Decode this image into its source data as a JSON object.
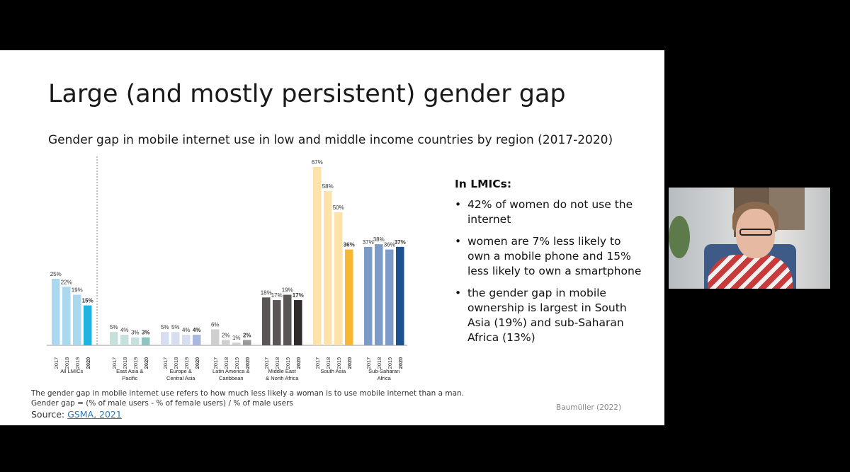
{
  "slide": {
    "title": "Large (and mostly persistent) gender gap",
    "chart_title": "Gender gap in mobile internet use in low and middle income countries by region (2017-2020)",
    "footnote_lines": [
      "The gender gap in mobile internet use refers to how much less likely a woman is to use mobile internet than a man.",
      "Gender gap = (% of male users - % of female users) / % of male users"
    ],
    "source_label": "Source: ",
    "source_link": "GSMA, 2021",
    "credit": "Baumüller (2022)"
  },
  "bullets": {
    "heading": "In LMICs:",
    "items": [
      "42% of women do not use the internet",
      "women are 7% less likely to own a mobile phone and 15% less likely to own a smartphone",
      "the gender gap in mobile ownership is largest  in South Asia (19%) and sub-Saharan Africa (13%)"
    ]
  },
  "chart_data": {
    "type": "bar",
    "title": "Gender gap in mobile internet use in low and middle income countries by region (2017-2020)",
    "years": [
      "2017",
      "2018",
      "2019",
      "2020"
    ],
    "groups": [
      {
        "name": "All LMICs",
        "label_lines": [
          "All LMICs"
        ],
        "values": [
          25,
          22,
          19,
          15
        ],
        "labels": [
          "25%",
          "22%",
          "19%",
          "15%"
        ],
        "colors": [
          "#a9d8ef",
          "#a9d8ef",
          "#a9d8ef",
          "#1fb3e0"
        ]
      },
      {
        "name": "East Asia & Pacific",
        "label_lines": [
          "East Asia &",
          "Pacific"
        ],
        "values": [
          5,
          4,
          3,
          3
        ],
        "labels": [
          "5%",
          "4%",
          "3%",
          "3%"
        ],
        "colors": [
          "#c6e1dd",
          "#c6e1dd",
          "#c6e1dd",
          "#8fc5c0"
        ]
      },
      {
        "name": "Europe & Central Asia",
        "label_lines": [
          "Europe &",
          "Central Asia"
        ],
        "values": [
          5,
          5,
          4,
          4
        ],
        "labels": [
          "5%",
          "5%",
          "4%",
          "4%"
        ],
        "colors": [
          "#d6def0",
          "#d6def0",
          "#d6def0",
          "#aab8dd"
        ]
      },
      {
        "name": "Latin America & Caribbean",
        "label_lines": [
          "Latin America &",
          "Caribbean"
        ],
        "values": [
          6,
          2,
          1,
          2
        ],
        "labels": [
          "6%",
          "2%",
          "1%",
          "2%"
        ],
        "colors": [
          "#cfcfcf",
          "#cfcfcf",
          "#cfcfcf",
          "#9a9a9a"
        ]
      },
      {
        "name": "Middle East & North Africa",
        "label_lines": [
          "Middle East",
          "& North Africa"
        ],
        "values": [
          18,
          17,
          19,
          17
        ],
        "labels": [
          "18%",
          "17%",
          "19%",
          "17%"
        ],
        "colors": [
          "#5a5656",
          "#5a5656",
          "#5a5656",
          "#2f2b2b"
        ]
      },
      {
        "name": "South Asia",
        "label_lines": [
          "South Asia"
        ],
        "values": [
          67,
          58,
          50,
          36
        ],
        "labels": [
          "67%",
          "58%",
          "50%",
          "36%"
        ],
        "colors": [
          "#fde3a9",
          "#fde3a9",
          "#fde3a9",
          "#f7b731"
        ]
      },
      {
        "name": "Sub-Saharan Africa",
        "label_lines": [
          "Sub-Saharan",
          "Africa"
        ],
        "values": [
          37,
          38,
          36,
          37
        ],
        "labels": [
          "37%",
          "38%",
          "36%",
          "37%"
        ],
        "colors": [
          "#7c9cc7",
          "#7c9cc7",
          "#7c9cc7",
          "#1d5291"
        ]
      }
    ],
    "ylim": [
      0,
      67
    ],
    "grid": false,
    "divider_after_first_group": true
  }
}
